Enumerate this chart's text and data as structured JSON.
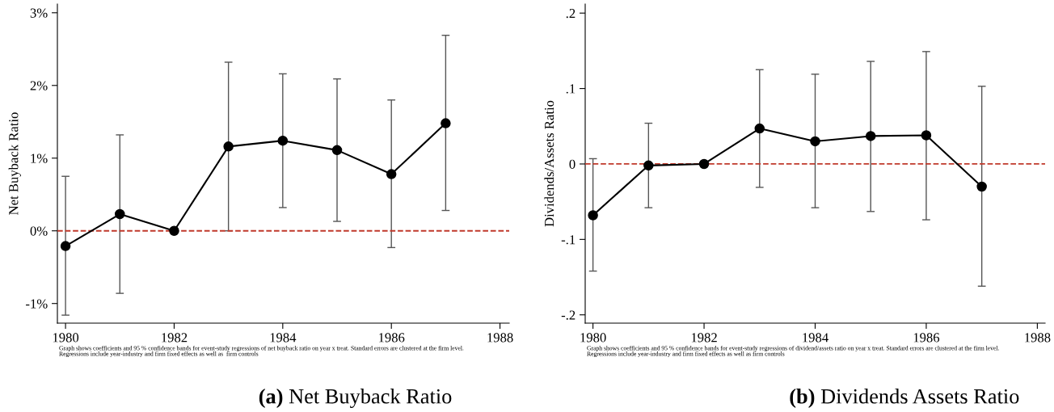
{
  "chart_data": [
    {
      "type": "line",
      "title": "(a) Net Buyback Ratio",
      "ylabel": "Net Buyback Ratio",
      "x": [
        1980,
        1981,
        1982,
        1983,
        1984,
        1985,
        1986,
        1987
      ],
      "series": [
        {
          "color": "#000000",
          "values": [
            -0.21,
            0.23,
            0,
            1.16,
            1.24,
            1.11,
            0.78,
            1.48
          ],
          "errors": [
            [
              -1.16,
              0.75
            ],
            [
              -0.86,
              1.32
            ],
            null,
            [
              0,
              2.32
            ],
            [
              0.32,
              2.16
            ],
            [
              0.13,
              2.09
            ],
            [
              -0.23,
              1.8
            ],
            [
              0.28,
              2.69
            ]
          ]
        }
      ],
      "marker": "circle",
      "line_style": "solid",
      "xlim": [
        1979.85,
        1988.17
      ],
      "xticks": [
        1980,
        1982,
        1984,
        1986,
        1988
      ],
      "ylim": [
        -1.27,
        3.12
      ],
      "yticks": [
        {
          "value": -1,
          "label": "-1%"
        },
        {
          "value": 0,
          "label": "0%"
        },
        {
          "value": 1,
          "label": "1%"
        },
        {
          "value": 2,
          "label": "2%"
        },
        {
          "value": 3,
          "label": "3%"
        }
      ],
      "ref_lines": [
        {
          "axis": "y",
          "value": 0,
          "color": "#c0392b",
          "line_style": "dashed"
        }
      ],
      "grid": false,
      "legend": false,
      "annotations": [
        "Graph shows coefficients and 95 % confidence bands for event-study regressions of net buyback ratio on year x treat. Standard errors are clustered at the firm level.\nRegressions include year-industry and firm fixed effects as well as  firm controls"
      ]
    },
    {
      "type": "line",
      "title": "(b) Dividends Assets Ratio",
      "ylabel": "Dividends/Assets Ratio",
      "x": [
        1980,
        1981,
        1982,
        1983,
        1984,
        1985,
        1986,
        1987
      ],
      "series": [
        {
          "color": "#000000",
          "values": [
            -0.068,
            -0.002,
            0,
            0.047,
            0.03,
            0.037,
            0.038,
            -0.03
          ],
          "errors": [
            [
              -0.142,
              0.007
            ],
            [
              -0.058,
              0.054
            ],
            null,
            [
              -0.031,
              0.125
            ],
            [
              -0.058,
              0.119
            ],
            [
              -0.063,
              0.136
            ],
            [
              -0.074,
              0.149
            ],
            [
              -0.162,
              0.103
            ]
          ]
        }
      ],
      "marker": "circle",
      "line_style": "solid",
      "xlim": [
        1979.86,
        1988.14
      ],
      "xticks": [
        1980,
        1982,
        1984,
        1986,
        1988
      ],
      "ylim": [
        -0.211,
        0.212
      ],
      "yticks": [
        {
          "value": -0.2,
          "label": "-.2"
        },
        {
          "value": -0.1,
          "label": "-.1"
        },
        {
          "value": 0,
          "label": "0"
        },
        {
          "value": 0.1,
          "label": ".1"
        },
        {
          "value": 0.2,
          "label": ".2"
        }
      ],
      "ref_lines": [
        {
          "axis": "y",
          "value": 0,
          "color": "#c0392b",
          "line_style": "dashed"
        }
      ],
      "grid": false,
      "legend": false,
      "annotations": [
        "Graph shows coefficients and 95 % confidence bands for event-study regressions of dividend/assets ratio on year x treat. Standard errors are clustered at the firm level.\nRegressions include year-industry and firm fixed effects as well as firm controls"
      ]
    }
  ]
}
